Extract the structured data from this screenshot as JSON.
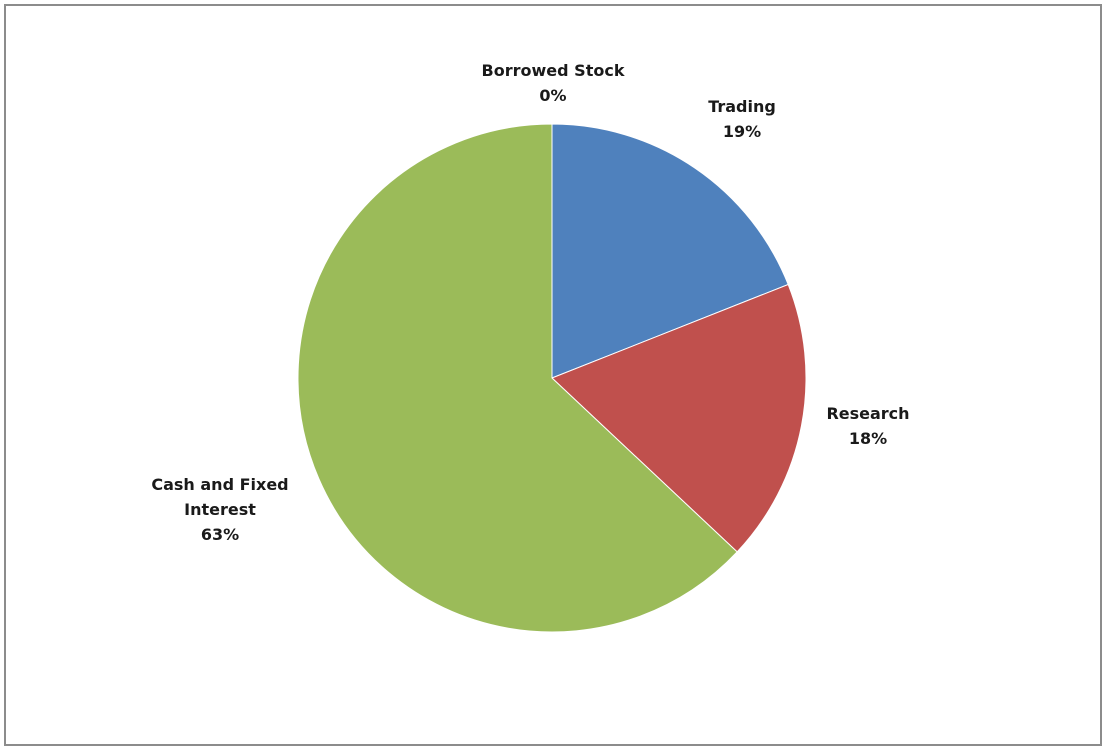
{
  "chart_data": {
    "type": "pie",
    "title": "",
    "slices": [
      {
        "label": "Trading",
        "value": 19,
        "value_label": "19%",
        "color": "#4f81bd"
      },
      {
        "label": "Research",
        "value": 18,
        "value_label": "18%",
        "color": "#c0504d"
      },
      {
        "label": "Cash and Fixed Interest",
        "value": 63,
        "value_label": "63%",
        "color": "#9bbb59"
      },
      {
        "label": "Borrowed Stock",
        "value": 0,
        "value_label": "0%",
        "color": "#8064a2"
      }
    ],
    "legend": "none",
    "data_labels": "category name and percentage"
  }
}
